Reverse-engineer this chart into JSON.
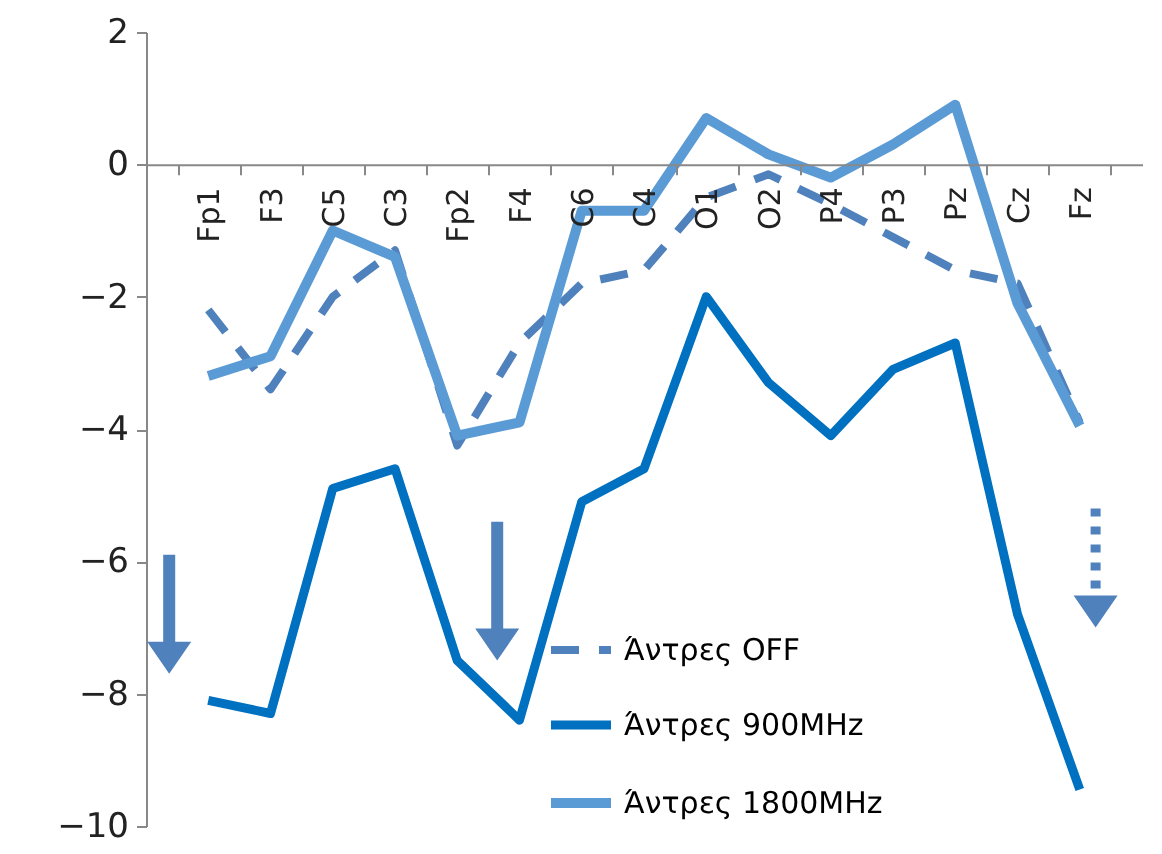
{
  "chart_data": {
    "type": "line",
    "categories": [
      "Fp1",
      "F3",
      "C5",
      "C3",
      "Fp2",
      "F4",
      "C6",
      "C4",
      "O1",
      "O2",
      "P4",
      "P3",
      "Pz",
      "Cz",
      "Fz"
    ],
    "series": [
      {
        "name": "Άντρες OFF",
        "color": "#4f81bd",
        "line_style": "dashed",
        "values": [
          -2.2,
          -3.4,
          -2.0,
          -1.3,
          -4.25,
          -2.7,
          -1.8,
          -1.6,
          -0.5,
          -0.15,
          -0.6,
          -1.1,
          -1.6,
          -1.8,
          -3.9
        ]
      },
      {
        "name": "Άντρες 900MHz",
        "color": "#0070c0",
        "line_style": "solid",
        "values": [
          -8.1,
          -8.3,
          -4.9,
          -4.6,
          -7.5,
          -8.4,
          -5.1,
          -4.6,
          -2.0,
          -3.3,
          -4.1,
          -3.1,
          -2.7,
          -6.8,
          -9.45
        ]
      },
      {
        "name": "Άντρες 1800MHz",
        "color": "#5b9bd5",
        "line_style": "solid",
        "values": [
          -3.2,
          -2.9,
          -1.0,
          -1.4,
          -4.1,
          -3.9,
          -0.7,
          -0.7,
          0.7,
          0.15,
          -0.2,
          0.3,
          0.9,
          -2.1,
          -3.95
        ]
      }
    ],
    "ylim": [
      -10,
      2
    ],
    "yticks": [
      -10,
      -8,
      -6,
      -4,
      -2,
      0,
      2
    ],
    "grid": false,
    "legend": "bottom right",
    "marker": "none"
  }
}
